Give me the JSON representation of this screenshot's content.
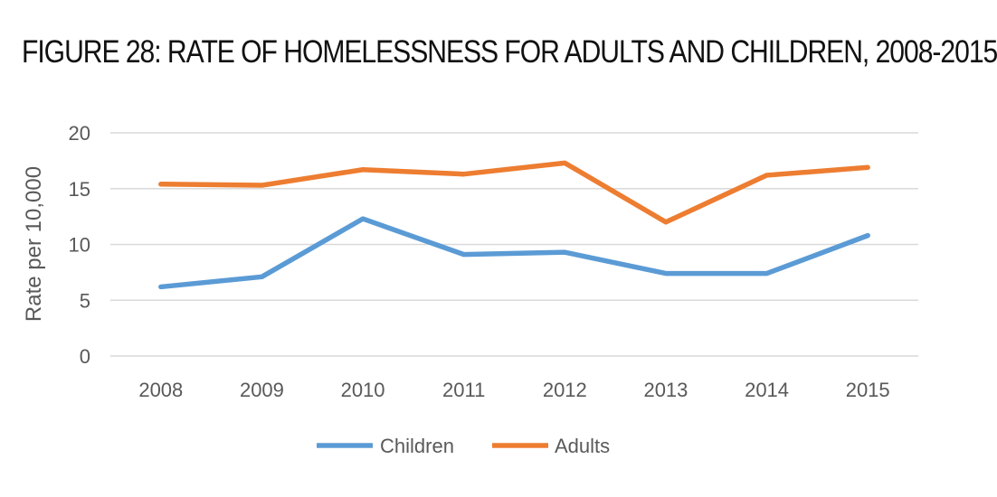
{
  "chart_data": {
    "type": "line",
    "title": "FIGURE 28: RATE OF HOMELESSNESS FOR ADULTS AND CHILDREN, 2008-2015",
    "xlabel": "",
    "ylabel": "Rate per 10,000",
    "categories": [
      "2008",
      "2009",
      "2010",
      "2011",
      "2012",
      "2013",
      "2014",
      "2015"
    ],
    "yticks": [
      "0",
      "5",
      "10",
      "15",
      "20"
    ],
    "ylim": [
      0,
      20
    ],
    "grid": true,
    "legend_position": "bottom",
    "series": [
      {
        "name": "Children",
        "color": "#5B9BD5",
        "values": [
          6.2,
          7.1,
          12.3,
          9.1,
          9.3,
          7.4,
          7.4,
          10.8
        ]
      },
      {
        "name": "Adults",
        "color": "#ED7D31",
        "values": [
          15.4,
          15.3,
          16.7,
          16.3,
          17.3,
          12.0,
          16.2,
          16.9
        ]
      }
    ]
  }
}
